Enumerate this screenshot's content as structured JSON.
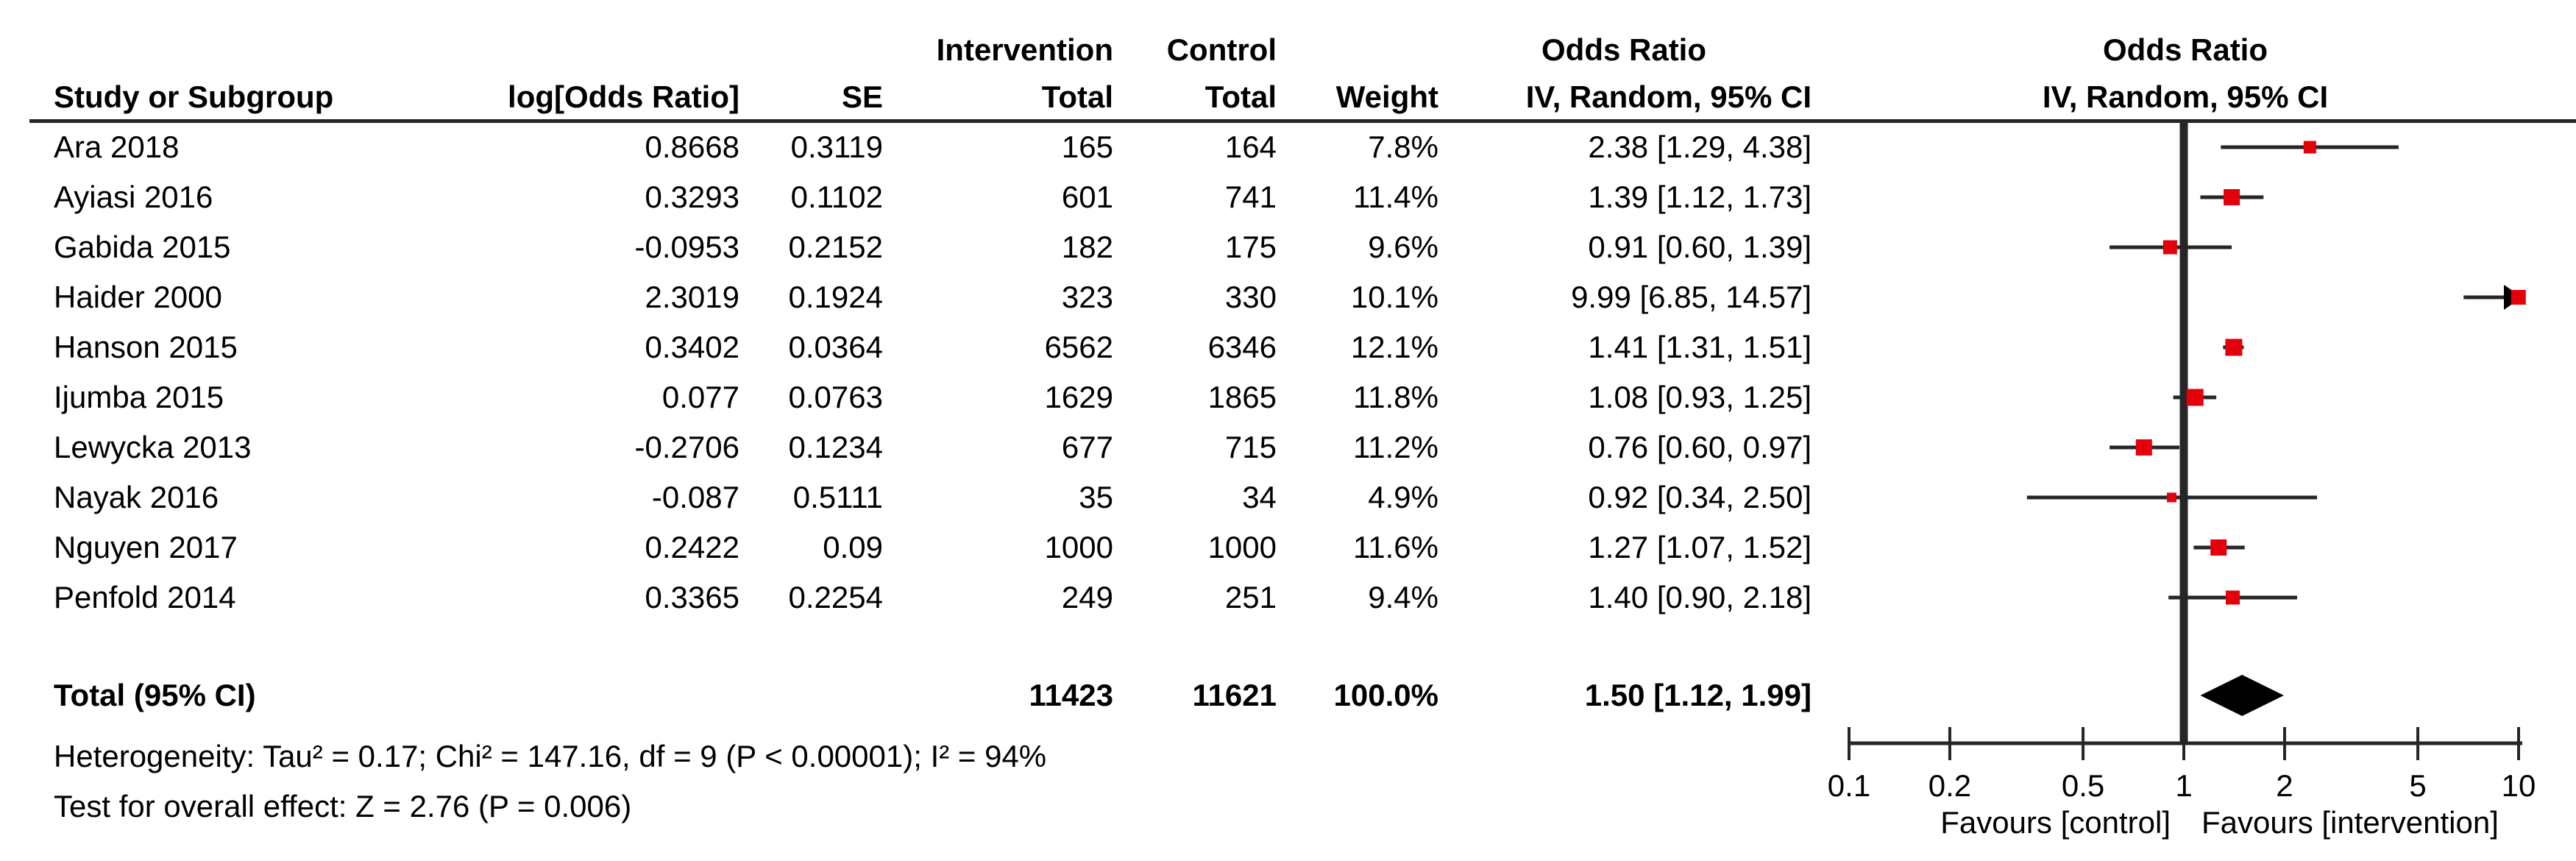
{
  "header": {
    "group_row": {
      "intervention": "Intervention",
      "control": "Control",
      "odds_ratio_left": "Odds Ratio",
      "odds_ratio_right": "Odds Ratio"
    },
    "col_row": {
      "study": "Study or Subgroup",
      "log_or": "log[Odds Ratio]",
      "se": "SE",
      "total_intervention": "Total",
      "total_control": "Total",
      "weight": "Weight",
      "or_ci_left": "IV, Random, 95% CI",
      "or_ci_right": "IV, Random, 95% CI"
    }
  },
  "chart_data": {
    "type": "forest",
    "effect_measure": "Odds Ratio",
    "model": "IV, Random, 95% CI",
    "axis": {
      "scale": "log",
      "min": 0.1,
      "max": 10,
      "ticks": [
        0.1,
        0.2,
        0.5,
        1,
        2,
        5,
        10
      ],
      "tick_labels": [
        "0.1",
        "0.2",
        "0.5",
        "1",
        "2",
        "5",
        "10"
      ]
    },
    "favours_left": "Favours [control]",
    "favours_right": "Favours [intervention]",
    "marker_color": "#e3000b",
    "line_color": "#262626",
    "studies": [
      {
        "name": "Ara 2018",
        "log_or": "0.8668",
        "se": "0.3119",
        "int_total": "165",
        "ctl_total": "164",
        "weight": "7.8%",
        "or_text": "2.38 [1.29, 4.38]",
        "or": 2.38,
        "lo": 1.29,
        "hi": 4.38
      },
      {
        "name": "Ayiasi 2016",
        "log_or": "0.3293",
        "se": "0.1102",
        "int_total": "601",
        "ctl_total": "741",
        "weight": "11.4%",
        "or_text": "1.39 [1.12, 1.73]",
        "or": 1.39,
        "lo": 1.12,
        "hi": 1.73
      },
      {
        "name": "Gabida 2015",
        "log_or": "-0.0953",
        "se": "0.2152",
        "int_total": "182",
        "ctl_total": "175",
        "weight": "9.6%",
        "or_text": "0.91 [0.60, 1.39]",
        "or": 0.91,
        "lo": 0.6,
        "hi": 1.39
      },
      {
        "name": "Haider 2000",
        "log_or": "2.3019",
        "se": "0.1924",
        "int_total": "323",
        "ctl_total": "330",
        "weight": "10.1%",
        "or_text": "9.99 [6.85, 14.57]",
        "or": 9.99,
        "lo": 6.85,
        "hi": 14.57
      },
      {
        "name": "Hanson 2015",
        "log_or": "0.3402",
        "se": "0.0364",
        "int_total": "6562",
        "ctl_total": "6346",
        "weight": "12.1%",
        "or_text": "1.41 [1.31, 1.51]",
        "or": 1.41,
        "lo": 1.31,
        "hi": 1.51
      },
      {
        "name": "Ijumba 2015",
        "log_or": "0.077",
        "se": "0.0763",
        "int_total": "1629",
        "ctl_total": "1865",
        "weight": "11.8%",
        "or_text": "1.08 [0.93, 1.25]",
        "or": 1.08,
        "lo": 0.93,
        "hi": 1.25
      },
      {
        "name": "Lewycka 2013",
        "log_or": "-0.2706",
        "se": "0.1234",
        "int_total": "677",
        "ctl_total": "715",
        "weight": "11.2%",
        "or_text": "0.76 [0.60, 0.97]",
        "or": 0.76,
        "lo": 0.6,
        "hi": 0.97
      },
      {
        "name": "Nayak 2016",
        "log_or": "-0.087",
        "se": "0.5111",
        "int_total": "35",
        "ctl_total": "34",
        "weight": "4.9%",
        "or_text": "0.92 [0.34, 2.50]",
        "or": 0.92,
        "lo": 0.34,
        "hi": 2.5
      },
      {
        "name": "Nguyen 2017",
        "log_or": "0.2422",
        "se": "0.09",
        "int_total": "1000",
        "ctl_total": "1000",
        "weight": "11.6%",
        "or_text": "1.27 [1.07, 1.52]",
        "or": 1.27,
        "lo": 1.07,
        "hi": 1.52
      },
      {
        "name": "Penfold 2014",
        "log_or": "0.3365",
        "se": "0.2254",
        "int_total": "249",
        "ctl_total": "251",
        "weight": "9.4%",
        "or_text": "1.40 [0.90, 2.18]",
        "or": 1.4,
        "lo": 0.9,
        "hi": 2.18
      }
    ],
    "total": {
      "label": "Total (95% CI)",
      "int_total": "11423",
      "ctl_total": "11621",
      "weight": "100.0%",
      "or_text": "1.50 [1.12, 1.99]",
      "or": 1.5,
      "lo": 1.12,
      "hi": 1.99
    },
    "footer": {
      "heterogeneity": "Heterogeneity: Tau² = 0.17; Chi² = 147.16, df = 9 (P < 0.00001); I² = 94%",
      "overall_effect": "Test for overall effect: Z = 2.76 (P = 0.006)"
    }
  }
}
